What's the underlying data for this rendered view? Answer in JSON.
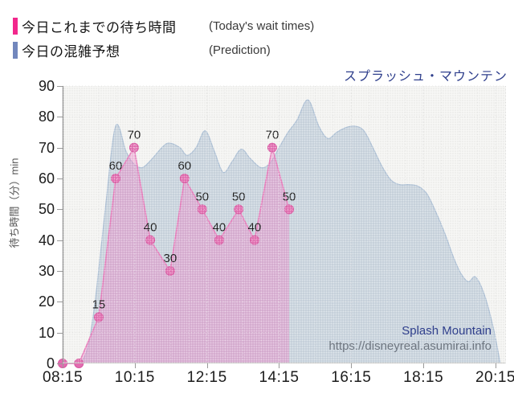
{
  "legend": {
    "items": [
      {
        "label": "今日これまでの待ち時間",
        "sublabel": "(Today's wait times)",
        "color": "#f2278c"
      },
      {
        "label": "今日の混雑予想",
        "sublabel": "(Prediction)",
        "color": "#7287bd"
      }
    ]
  },
  "title": "スプラッシュ・マウンテン",
  "watermark": {
    "name": "Splash Mountain",
    "url": "https://disneyreal.asumirai.info"
  },
  "chart_data": {
    "type": "area",
    "title": "スプラッシュ・マウンテン",
    "xlabel": "",
    "ylabel": "待ち時間（分）min",
    "ylim": [
      0,
      90
    ],
    "yticks": [
      0,
      10,
      20,
      30,
      40,
      50,
      60,
      70,
      80,
      90
    ],
    "xticks": {
      "labels": [
        "08:15",
        "10:15",
        "12:15",
        "14:15",
        "16:15",
        "18:15",
        "20:15"
      ],
      "hours": [
        8.25,
        10.25,
        12.25,
        14.25,
        16.25,
        18.25,
        20.25
      ]
    },
    "x_range_hours": [
      8.25,
      20.54
    ],
    "minor_x_step_hours": 0.5,
    "grid": true,
    "legend_position": "top-left",
    "series": [
      {
        "name": "今日これまでの待ち時間 (Today's wait times)",
        "type": "line+markers+area",
        "line_color": "#e87bbb",
        "marker_color": "#e26cb0",
        "marker_edge": "#d855a0",
        "fill_color": "rgba(236,127,196,0.45)",
        "points": [
          {
            "t": 8.25,
            "v": 0,
            "label": ""
          },
          {
            "t": 8.7,
            "v": 0,
            "label": ""
          },
          {
            "t": 9.25,
            "v": 15,
            "label": "15"
          },
          {
            "t": 9.72,
            "v": 60,
            "label": "60"
          },
          {
            "t": 10.23,
            "v": 70,
            "label": "70"
          },
          {
            "t": 10.68,
            "v": 40,
            "label": "40"
          },
          {
            "t": 11.23,
            "v": 30,
            "label": "30"
          },
          {
            "t": 11.63,
            "v": 60,
            "label": "60"
          },
          {
            "t": 12.12,
            "v": 50,
            "label": "50"
          },
          {
            "t": 12.59,
            "v": 40,
            "label": "40"
          },
          {
            "t": 13.13,
            "v": 50,
            "label": "50"
          },
          {
            "t": 13.57,
            "v": 40,
            "label": "40"
          },
          {
            "t": 14.06,
            "v": 70,
            "label": "70"
          },
          {
            "t": 14.53,
            "v": 50,
            "label": "50"
          }
        ]
      },
      {
        "name": "今日の混雑予想 (Prediction)",
        "type": "area",
        "line_color": "#aabed4",
        "fill_color": "rgba(141,166,196,0.42)",
        "points": [
          [
            8.25,
            0
          ],
          [
            8.55,
            0
          ],
          [
            8.8,
            1
          ],
          [
            9.0,
            8
          ],
          [
            9.2,
            25
          ],
          [
            9.45,
            52
          ],
          [
            9.72,
            77
          ],
          [
            10.0,
            69
          ],
          [
            10.2,
            65
          ],
          [
            10.45,
            63.5
          ],
          [
            10.7,
            66
          ],
          [
            11.0,
            70
          ],
          [
            11.2,
            71.5
          ],
          [
            11.5,
            70
          ],
          [
            11.7,
            67.5
          ],
          [
            11.95,
            70
          ],
          [
            12.2,
            75.5
          ],
          [
            12.45,
            69
          ],
          [
            12.7,
            62
          ],
          [
            12.95,
            65.5
          ],
          [
            13.2,
            69.5
          ],
          [
            13.45,
            66.5
          ],
          [
            13.75,
            63.5
          ],
          [
            14.0,
            65
          ],
          [
            14.25,
            70
          ],
          [
            14.5,
            75
          ],
          [
            14.75,
            79
          ],
          [
            15.05,
            85.5
          ],
          [
            15.35,
            77
          ],
          [
            15.6,
            73
          ],
          [
            15.85,
            75
          ],
          [
            16.1,
            76.5
          ],
          [
            16.35,
            77
          ],
          [
            16.6,
            75.5
          ],
          [
            16.85,
            70
          ],
          [
            17.1,
            64
          ],
          [
            17.35,
            59.5
          ],
          [
            17.6,
            58
          ],
          [
            17.85,
            58
          ],
          [
            18.1,
            57.5
          ],
          [
            18.35,
            55
          ],
          [
            18.6,
            49
          ],
          [
            18.85,
            42
          ],
          [
            19.1,
            34
          ],
          [
            19.3,
            29
          ],
          [
            19.5,
            26.5
          ],
          [
            19.7,
            28
          ],
          [
            19.95,
            22
          ],
          [
            20.2,
            11
          ],
          [
            20.38,
            0
          ]
        ]
      }
    ]
  }
}
